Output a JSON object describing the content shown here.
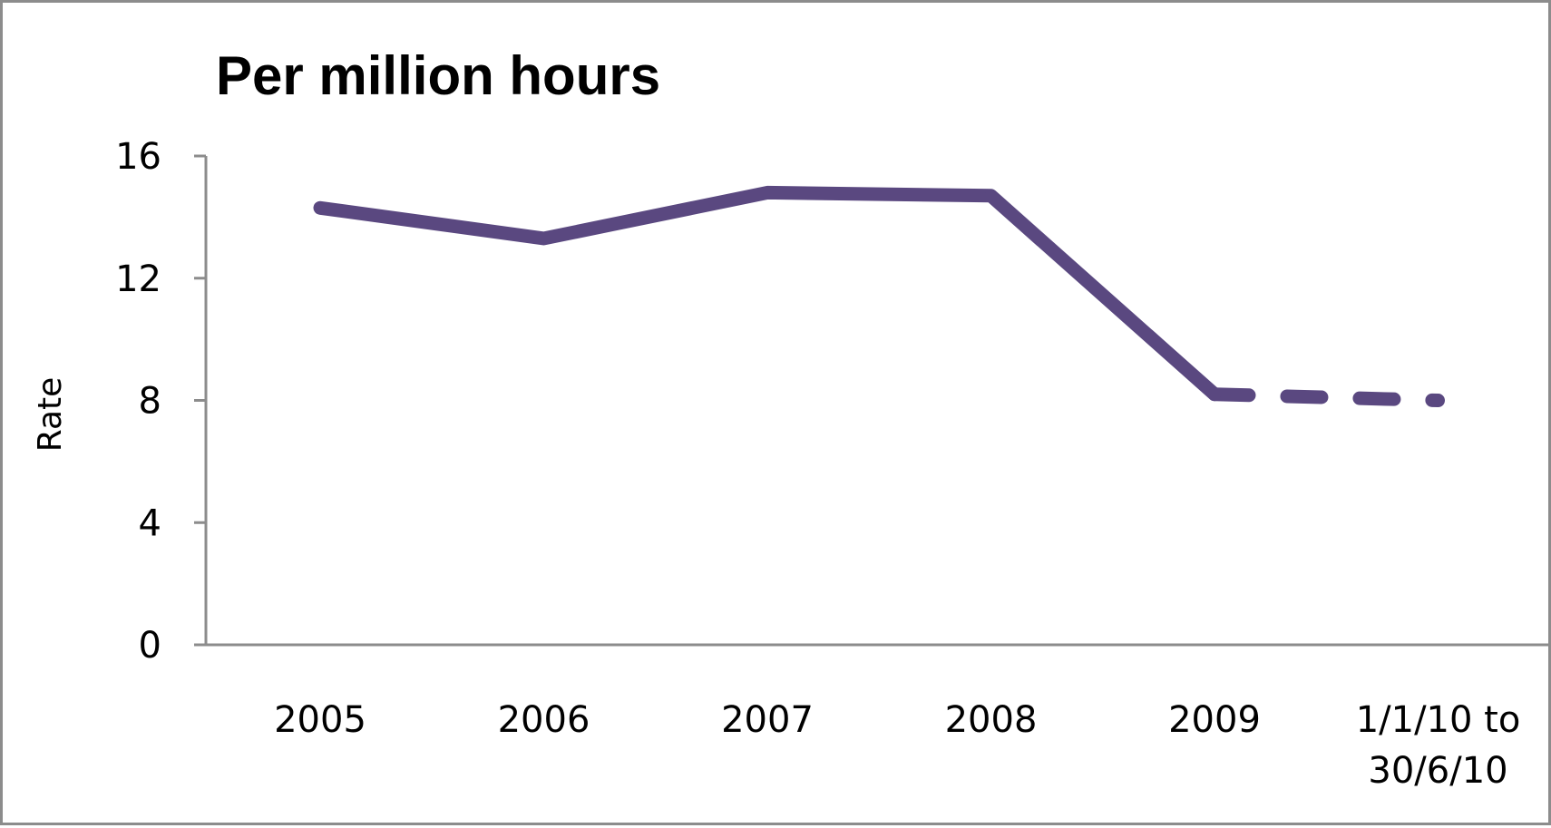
{
  "chart_data": {
    "type": "line",
    "title": "Per million hours",
    "xlabel": "",
    "ylabel": "Rate",
    "categories": [
      "2005",
      "2006",
      "2007",
      "2008",
      "2009",
      "1/1/10 to 30/6/10"
    ],
    "category_label_lines": [
      [
        "2005"
      ],
      [
        "2006"
      ],
      [
        "2007"
      ],
      [
        "2008"
      ],
      [
        "2009"
      ],
      [
        "1/1/10 to",
        "30/6/10"
      ]
    ],
    "values": [
      14.3,
      13.3,
      14.8,
      14.7,
      8.2,
      8.0
    ],
    "dashed_from_index": 4,
    "ylim": [
      0,
      16
    ],
    "yticks": [
      0,
      4,
      8,
      12,
      16
    ],
    "grid": false,
    "legend": "none",
    "line_color": "#5a4880",
    "axis_color": "#8c8c8c"
  }
}
